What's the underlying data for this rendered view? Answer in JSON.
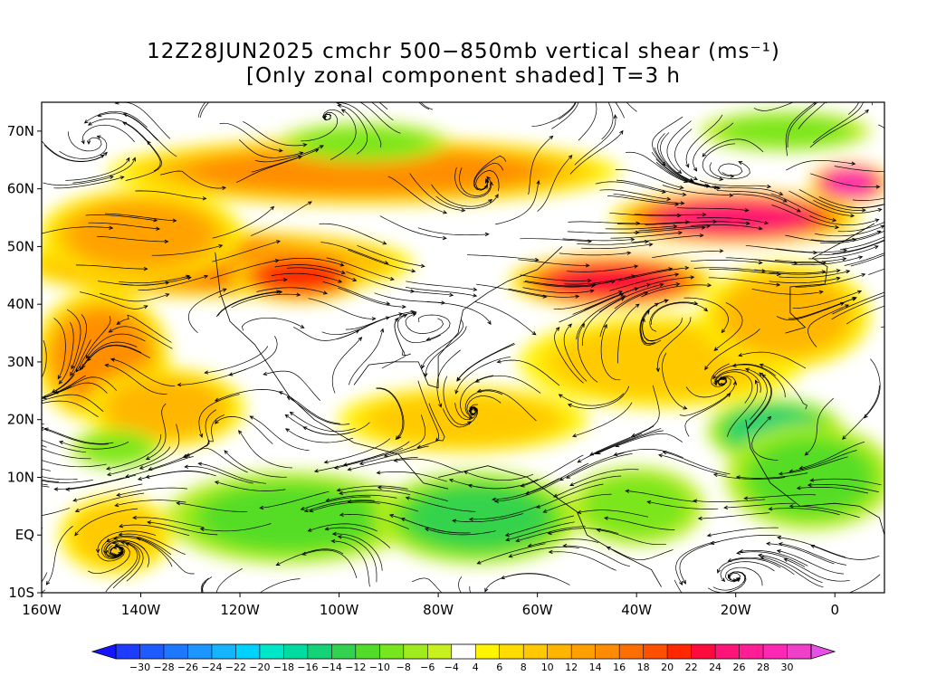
{
  "title": {
    "line1": "12Z28JUN2025 cmchr 500−850mb vertical shear (ms⁻¹)",
    "line2": "[Only zonal component shaded] T=3 h"
  },
  "map": {
    "lon_range": [
      -160,
      10
    ],
    "lat_range": [
      -10,
      75
    ],
    "lat_ticks": [
      {
        "value": 70,
        "label": "70N"
      },
      {
        "value": 60,
        "label": "60N"
      },
      {
        "value": 50,
        "label": "50N"
      },
      {
        "value": 40,
        "label": "40N"
      },
      {
        "value": 30,
        "label": "30N"
      },
      {
        "value": 20,
        "label": "20N"
      },
      {
        "value": 10,
        "label": "10N"
      },
      {
        "value": 0,
        "label": "EQ"
      },
      {
        "value": -10,
        "label": "10S"
      }
    ],
    "lon_ticks": [
      {
        "value": -160,
        "label": "160W"
      },
      {
        "value": -140,
        "label": "140W"
      },
      {
        "value": -120,
        "label": "120W"
      },
      {
        "value": -100,
        "label": "100W"
      },
      {
        "value": -80,
        "label": "80W"
      },
      {
        "value": -60,
        "label": "60W"
      },
      {
        "value": -40,
        "label": "40W"
      },
      {
        "value": -20,
        "label": "20W"
      },
      {
        "value": 0,
        "label": "0"
      }
    ],
    "features": [
      {
        "kind": "positive",
        "value": 16,
        "lon": -125,
        "lat": 47,
        "rx": 35,
        "ry": 5
      },
      {
        "kind": "positive",
        "value": 20,
        "lon": -108,
        "lat": 45,
        "rx": 12,
        "ry": 4
      },
      {
        "kind": "positive",
        "value": 14,
        "lon": -95,
        "lat": 63,
        "rx": 45,
        "ry": 5
      },
      {
        "kind": "positive",
        "value": 12,
        "lon": -140,
        "lat": 52,
        "rx": 18,
        "ry": 7
      },
      {
        "kind": "positive",
        "value": 22,
        "lon": -45,
        "lat": 44,
        "rx": 18,
        "ry": 4
      },
      {
        "kind": "positive",
        "value": 24,
        "lon": -20,
        "lat": 55,
        "rx": 22,
        "ry": 4
      },
      {
        "kind": "positive",
        "value": 28,
        "lon": 3,
        "lat": 61,
        "rx": 7,
        "ry": 3
      },
      {
        "kind": "positive",
        "value": 14,
        "lon": -148,
        "lat": 31,
        "rx": 12,
        "ry": 10
      },
      {
        "kind": "positive",
        "value": 10,
        "lon": -135,
        "lat": 22,
        "rx": 14,
        "ry": 6
      },
      {
        "kind": "positive",
        "value": 8,
        "lon": -75,
        "lat": 20,
        "rx": 22,
        "ry": 5
      },
      {
        "kind": "positive",
        "value": 8,
        "lon": -35,
        "lat": 30,
        "rx": 25,
        "ry": 7
      },
      {
        "kind": "positive",
        "value": 10,
        "lon": -10,
        "lat": 38,
        "rx": 15,
        "ry": 8
      },
      {
        "kind": "positive",
        "value": 8,
        "lon": -145,
        "lat": 0,
        "rx": 10,
        "ry": 6
      },
      {
        "kind": "negative",
        "value": -10,
        "lon": -110,
        "lat": 3,
        "rx": 22,
        "ry": 7
      },
      {
        "kind": "negative",
        "value": -12,
        "lon": -72,
        "lat": 3,
        "rx": 18,
        "ry": 7
      },
      {
        "kind": "negative",
        "value": -14,
        "lon": -12,
        "lat": 18,
        "rx": 12,
        "ry": 5
      },
      {
        "kind": "negative",
        "value": -10,
        "lon": -5,
        "lat": 10,
        "rx": 15,
        "ry": 8
      },
      {
        "kind": "negative",
        "value": -8,
        "lon": -95,
        "lat": 68,
        "rx": 15,
        "ry": 3
      },
      {
        "kind": "negative",
        "value": -8,
        "lon": -10,
        "lat": 70,
        "rx": 15,
        "ry": 3
      },
      {
        "kind": "negative",
        "value": -8,
        "lon": -145,
        "lat": 15,
        "rx": 8,
        "ry": 3
      },
      {
        "kind": "negative",
        "value": -8,
        "lon": -40,
        "lat": 5,
        "rx": 12,
        "ry": 6
      }
    ]
  },
  "colorbar": {
    "labels": [
      "−30",
      "−28",
      "−26",
      "−24",
      "−22",
      "−20",
      "−18",
      "−16",
      "−14",
      "−12",
      "−10",
      "−8",
      "−6",
      "−4",
      "4",
      "6",
      "8",
      "10",
      "12",
      "14",
      "16",
      "18",
      "20",
      "22",
      "24",
      "26",
      "28",
      "30"
    ],
    "colors": [
      "#1e3cff",
      "#1e5aff",
      "#1e78ff",
      "#1e96ff",
      "#14b4ff",
      "#00d2ff",
      "#00e6c8",
      "#00dca0",
      "#14d278",
      "#32d250",
      "#50dc28",
      "#78e61e",
      "#a0eb1e",
      "#c8f01e",
      "#ffffff",
      "#fff500",
      "#ffdc00",
      "#ffc800",
      "#ffb400",
      "#ffa000",
      "#ff8c00",
      "#ff6e00",
      "#ff5000",
      "#ff2800",
      "#ff0a3c",
      "#ff1478",
      "#ff1e96",
      "#ff28b4",
      "#f040c8"
    ],
    "left_arrow_color": "#1414ff",
    "right_arrow_color": "#e650e6"
  }
}
